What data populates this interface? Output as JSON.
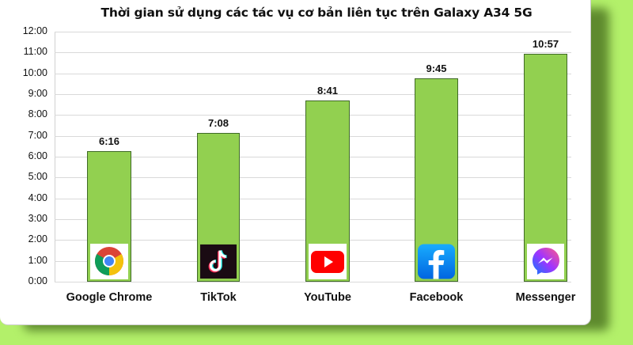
{
  "chart_data": {
    "type": "bar",
    "title": "Thời gian sử dụng các tác vụ cơ bản liên tục trên Galaxy A34 5G",
    "xlabel": "",
    "ylabel": "",
    "categories": [
      "Google Chrome",
      "TikTok",
      "YouTube",
      "Facebook",
      "Messenger"
    ],
    "values": [
      6.2667,
      7.1333,
      8.6833,
      9.75,
      10.95
    ],
    "value_labels": [
      "6:16",
      "7:08",
      "8:41",
      "9:45",
      "10:57"
    ],
    "ylim": [
      0,
      12
    ],
    "yticks": [
      "0:00",
      "1:00",
      "2:00",
      "3:00",
      "4:00",
      "5:00",
      "6:00",
      "7:00",
      "8:00",
      "9:00",
      "10:00",
      "11:00",
      "12:00"
    ],
    "grid": true,
    "legend": "none",
    "bar_color": "#92d050",
    "bar_border_color": "#3f6a26",
    "icons": [
      "chrome-icon",
      "tiktok-icon",
      "youtube-icon",
      "facebook-icon",
      "messenger-icon"
    ]
  },
  "colors": {
    "background": "#b3f06a",
    "card": "#ffffff",
    "gridline": "#d9d9d9"
  }
}
